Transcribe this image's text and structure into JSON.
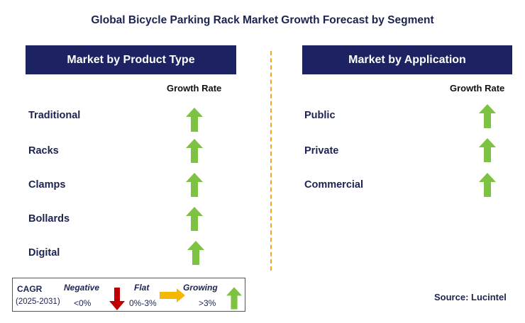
{
  "title": "Global Bicycle Parking Rack Market Growth Forecast by Segment",
  "left_panel": {
    "header": "Market by Product Type",
    "growth_label": "Growth Rate",
    "items": [
      {
        "label": "Traditional",
        "trend": "growing"
      },
      {
        "label": "Racks",
        "trend": "growing"
      },
      {
        "label": "Clamps",
        "trend": "growing"
      },
      {
        "label": "Bollards",
        "trend": "growing"
      },
      {
        "label": "Digital",
        "trend": "growing"
      }
    ]
  },
  "right_panel": {
    "header": "Market by Application",
    "growth_label": "Growth Rate",
    "items": [
      {
        "label": "Public",
        "trend": "growing"
      },
      {
        "label": "Private",
        "trend": "growing"
      },
      {
        "label": "Commercial",
        "trend": "growing"
      }
    ]
  },
  "legend": {
    "cagr_label": "CAGR",
    "period": "(2025-2031)",
    "negative_label": "Negative",
    "negative_range": "<0%",
    "flat_label": "Flat",
    "flat_range": "0%-3%",
    "growing_label": "Growing",
    "growing_range": ">3%"
  },
  "source": "Source: Lucintel",
  "colors": {
    "header_bg": "#1c2262",
    "text_navy": "#1c2350",
    "arrow_green": "#7dc242",
    "arrow_red": "#c00000",
    "arrow_orange": "#f5b800",
    "divider": "#f5a623"
  }
}
